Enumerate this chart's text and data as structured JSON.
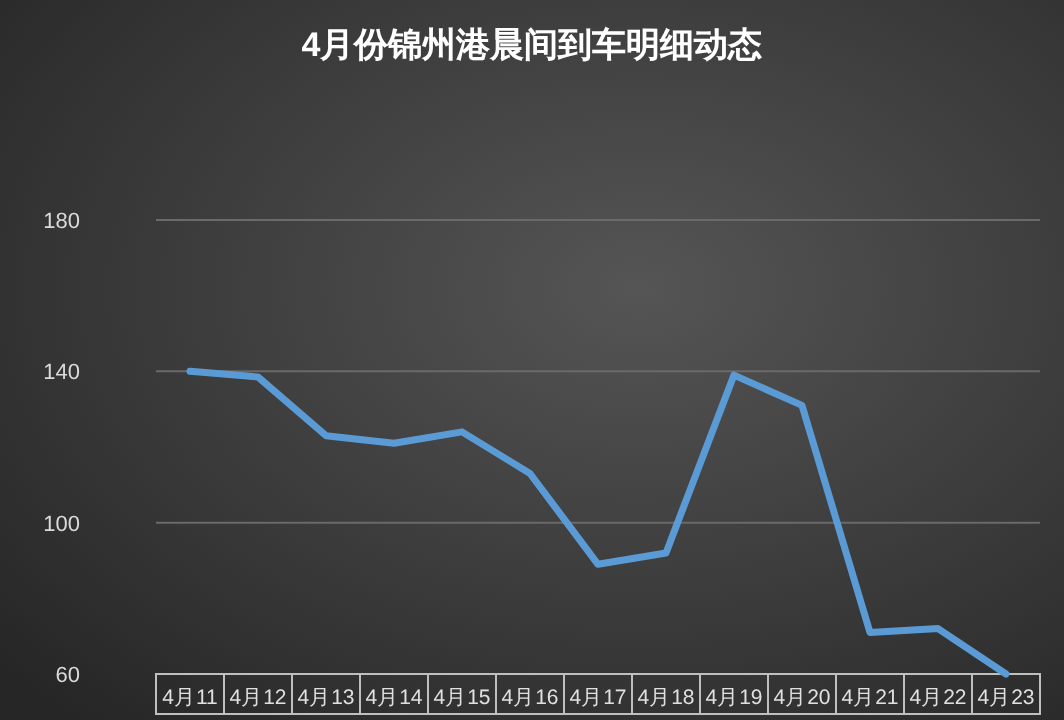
{
  "chart_data": {
    "type": "line",
    "title": "4月份锦州港晨间到车明细动态",
    "categories": [
      "4月11",
      "4月12",
      "4月13",
      "4月14",
      "4月15",
      "4月16",
      "4月17",
      "4月18",
      "4月19",
      "4月20",
      "4月21",
      "4月22",
      "4月23"
    ],
    "series": [
      {
        "color": "#5b9bd5",
        "values": [
          140,
          138.5,
          123,
          121,
          124,
          113,
          89,
          92,
          139,
          131,
          71,
          72,
          60
        ]
      }
    ],
    "ylim": [
      60,
      180
    ],
    "yticks": [
      60,
      100,
      140,
      180
    ],
    "grid": "y",
    "marker": "none",
    "line_style": "solid"
  }
}
